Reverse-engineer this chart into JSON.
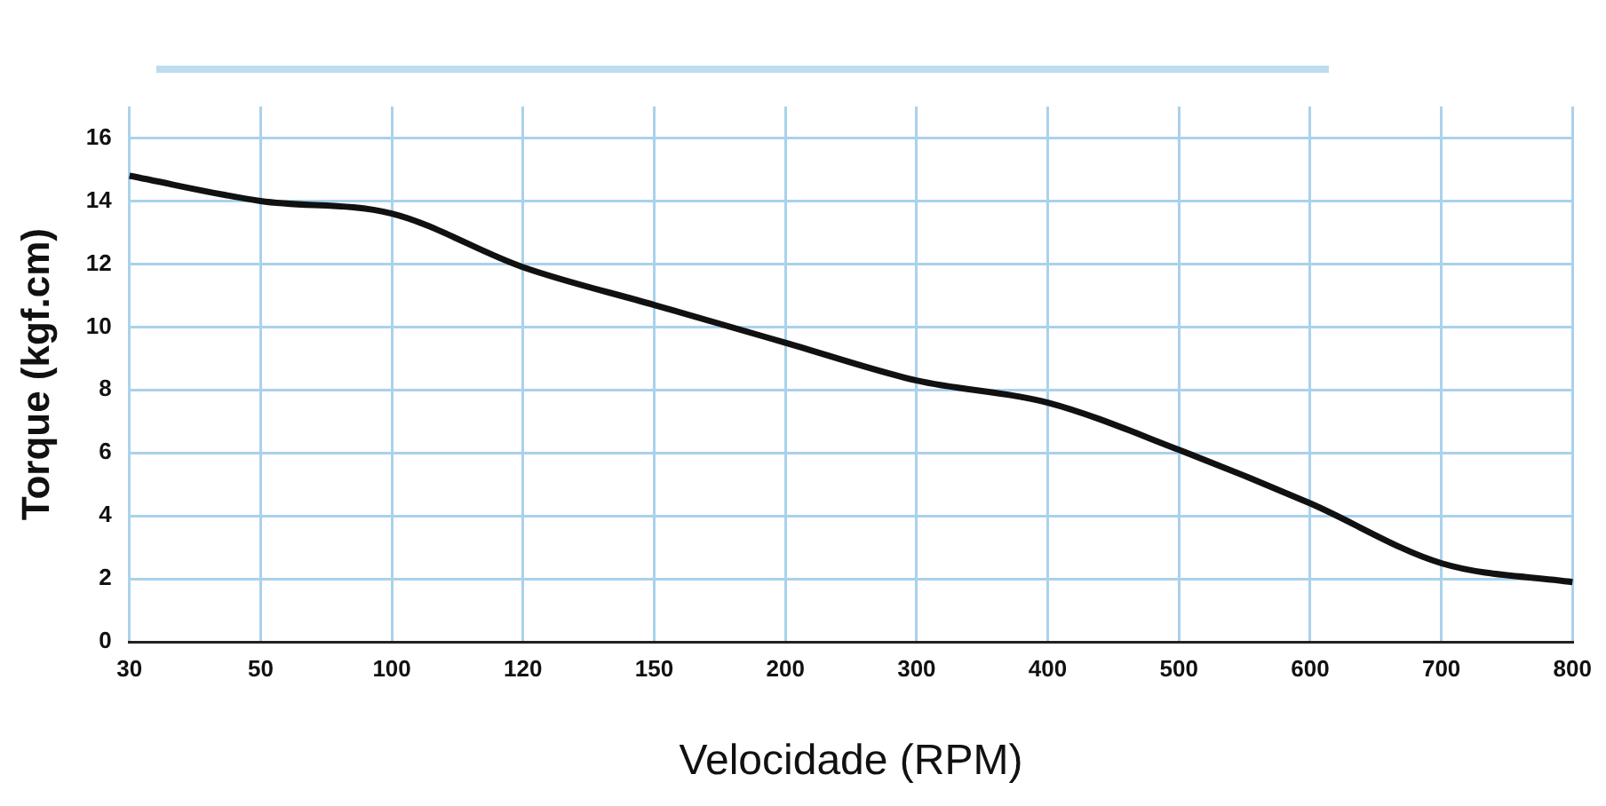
{
  "chart_data": {
    "type": "line",
    "xlabel": "Velocidade (RPM)",
    "ylabel": "Torque (kgf.cm)",
    "categories": [
      "30",
      "50",
      "100",
      "120",
      "150",
      "200",
      "300",
      "400",
      "500",
      "600",
      "700",
      "800"
    ],
    "series": [
      {
        "color": "#111111",
        "values": [
          14.8,
          14.0,
          13.6,
          11.9,
          10.7,
          9.5,
          8.3,
          7.6,
          6.1,
          4.4,
          2.5,
          1.9
        ]
      }
    ],
    "ylim": [
      0,
      17
    ],
    "yticks": [
      {
        "value": 0,
        "label": "0"
      },
      2,
      4,
      6,
      8,
      10,
      12,
      14,
      16
    ],
    "grid": true,
    "marker": "none",
    "line_style": "solid"
  }
}
